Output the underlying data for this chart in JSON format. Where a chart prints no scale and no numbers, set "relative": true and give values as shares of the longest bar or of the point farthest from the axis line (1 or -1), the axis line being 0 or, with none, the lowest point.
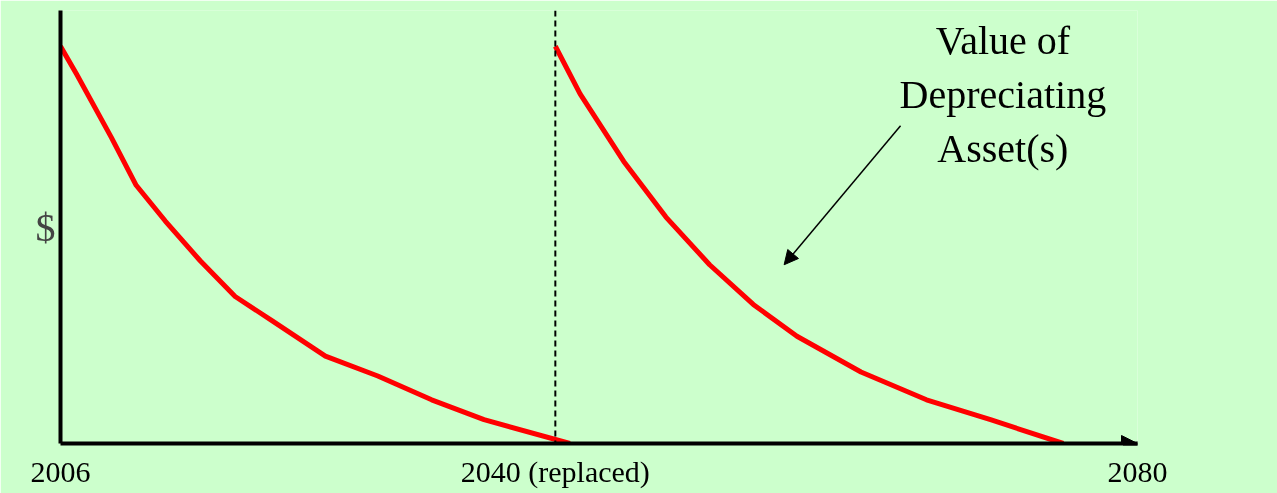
{
  "chart_data": {
    "type": "line",
    "relative": true,
    "ylabel": "$",
    "xlim": [
      2006,
      2080
    ],
    "xticks": [
      2006,
      {
        "value": 2040,
        "label": "2040 (replaced)"
      },
      2080
    ],
    "tick_labels": "x",
    "grid": false,
    "line_style": "solid",
    "marker": "none",
    "series": [
      {
        "color": "#ff0000",
        "x": [
          2006,
          2007.1,
          2009.5,
          2011.2,
          2013.2,
          2015.6,
          2018.0,
          2020.5,
          2024.2,
          2027.8,
          2031.5,
          2035.1,
          2041
        ],
        "values": [
          1.0,
          0.93,
          0.77,
          0.65,
          0.56,
          0.46,
          0.37,
          0.31,
          0.22,
          0.17,
          0.11,
          0.06,
          0
        ]
      },
      {
        "color": "#ff0000",
        "x": [
          2040,
          2041.7,
          2044.7,
          2047.6,
          2050.6,
          2053.6,
          2056.6,
          2061.0,
          2065.5,
          2069.9,
          2074.9
        ],
        "values": [
          1.0,
          0.88,
          0.71,
          0.57,
          0.45,
          0.35,
          0.27,
          0.18,
          0.11,
          0.06,
          0
        ]
      }
    ],
    "ref_lines": [
      {
        "axis": "x",
        "value": 2040,
        "color": "#000000",
        "line_style": "dashed"
      }
    ],
    "annotations": [
      "Value of\nDepreciating\nAsset(s)"
    ]
  }
}
